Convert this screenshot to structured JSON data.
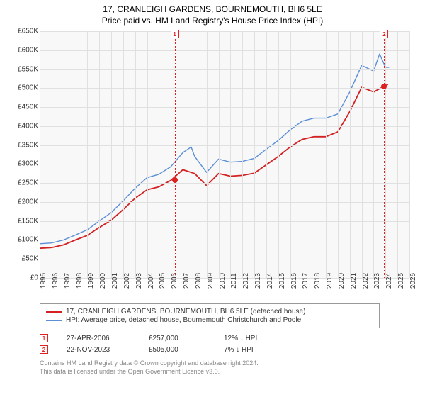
{
  "title": "17, CRANLEIGH GARDENS, BOURNEMOUTH, BH6 5LE",
  "subtitle": "Price paid vs. HM Land Registry's House Price Index (HPI)",
  "chart": {
    "type": "line",
    "background_color": "#f8f8f8",
    "grid_color": "#e0e0e0",
    "xlim": [
      1995,
      2026
    ],
    "ylim": [
      0,
      650000
    ],
    "ytick_step": 50000,
    "yticks": [
      "£0",
      "£50K",
      "£100K",
      "£150K",
      "£200K",
      "£250K",
      "£300K",
      "£350K",
      "£400K",
      "£450K",
      "£500K",
      "£550K",
      "£600K",
      "£650K"
    ],
    "xticks": [
      1995,
      1996,
      1997,
      1998,
      1999,
      2000,
      2001,
      2002,
      2003,
      2004,
      2005,
      2006,
      2007,
      2008,
      2009,
      2010,
      2011,
      2012,
      2013,
      2014,
      2015,
      2016,
      2017,
      2018,
      2019,
      2020,
      2021,
      2022,
      2023,
      2024,
      2025,
      2026
    ],
    "series": [
      {
        "name": "property",
        "label": "17, CRANLEIGH GARDENS, BOURNEMOUTH, BH6 5LE (detached house)",
        "color": "#d22222",
        "line_width": 1.8,
        "data": [
          [
            1995,
            78000
          ],
          [
            1996,
            80000
          ],
          [
            1997,
            87000
          ],
          [
            1998,
            100000
          ],
          [
            1999,
            112000
          ],
          [
            2000,
            133000
          ],
          [
            2001,
            152000
          ],
          [
            2002,
            180000
          ],
          [
            2003,
            210000
          ],
          [
            2004,
            232000
          ],
          [
            2005,
            240000
          ],
          [
            2006,
            257000
          ],
          [
            2007,
            285000
          ],
          [
            2008,
            275000
          ],
          [
            2009,
            243000
          ],
          [
            2010,
            275000
          ],
          [
            2011,
            268000
          ],
          [
            2012,
            270000
          ],
          [
            2013,
            276000
          ],
          [
            2014,
            298000
          ],
          [
            2015,
            320000
          ],
          [
            2016,
            345000
          ],
          [
            2017,
            365000
          ],
          [
            2018,
            372000
          ],
          [
            2019,
            372000
          ],
          [
            2020,
            385000
          ],
          [
            2021,
            438000
          ],
          [
            2022,
            502000
          ],
          [
            2023,
            490000
          ],
          [
            2023.9,
            505000
          ],
          [
            2024.2,
            510000
          ]
        ]
      },
      {
        "name": "hpi",
        "label": "HPI: Average price, detached house, Bournemouth Christchurch and Poole",
        "color": "#5b8fd6",
        "line_width": 1.4,
        "data": [
          [
            1995,
            90000
          ],
          [
            1996,
            92000
          ],
          [
            1997,
            100000
          ],
          [
            1998,
            113000
          ],
          [
            1999,
            127000
          ],
          [
            2000,
            150000
          ],
          [
            2001,
            172000
          ],
          [
            2002,
            203000
          ],
          [
            2003,
            236000
          ],
          [
            2004,
            264000
          ],
          [
            2005,
            273000
          ],
          [
            2006,
            293000
          ],
          [
            2007,
            330000
          ],
          [
            2007.7,
            345000
          ],
          [
            2008,
            320000
          ],
          [
            2009,
            278000
          ],
          [
            2010,
            313000
          ],
          [
            2011,
            305000
          ],
          [
            2012,
            307000
          ],
          [
            2013,
            315000
          ],
          [
            2014,
            339000
          ],
          [
            2015,
            362000
          ],
          [
            2016,
            390000
          ],
          [
            2017,
            413000
          ],
          [
            2018,
            421000
          ],
          [
            2019,
            421000
          ],
          [
            2020,
            432000
          ],
          [
            2021,
            490000
          ],
          [
            2022,
            560000
          ],
          [
            2023,
            545000
          ],
          [
            2023.5,
            590000
          ],
          [
            2024,
            555000
          ],
          [
            2024.3,
            555000
          ]
        ]
      }
    ],
    "markers": [
      {
        "id": "1",
        "x": 2006.32,
        "y": 257000
      },
      {
        "id": "2",
        "x": 2023.89,
        "y": 505000
      }
    ]
  },
  "legend": {
    "items": [
      {
        "color": "#d22222",
        "label": "17, CRANLEIGH GARDENS, BOURNEMOUTH, BH6 5LE (detached house)"
      },
      {
        "color": "#5b8fd6",
        "label": "HPI: Average price, detached house, Bournemouth Christchurch and Poole"
      }
    ]
  },
  "data_points": [
    {
      "id": "1",
      "date": "27-APR-2006",
      "price": "£257,000",
      "pct": "12%",
      "arrow": "↓",
      "rel": "HPI"
    },
    {
      "id": "2",
      "date": "22-NOV-2023",
      "price": "£505,000",
      "pct": "7%",
      "arrow": "↓",
      "rel": "HPI"
    }
  ],
  "footer": {
    "line1": "Contains HM Land Registry data © Crown copyright and database right 2024.",
    "line2": "This data is licensed under the Open Government Licence v3.0."
  }
}
